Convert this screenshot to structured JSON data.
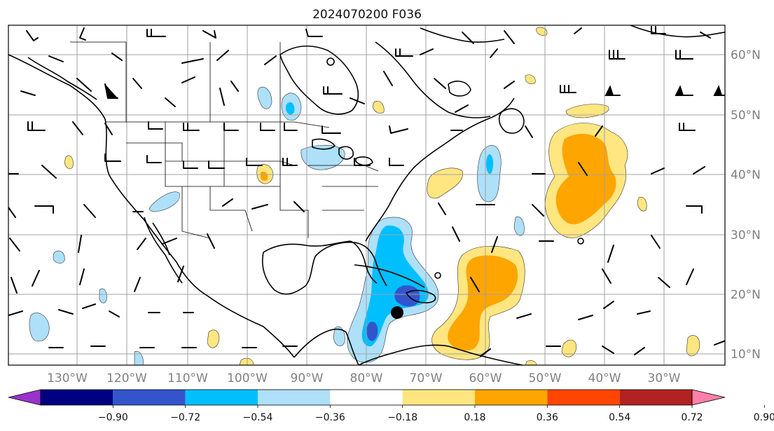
{
  "title": "2024070200 F036",
  "lon_labels": [
    "130°W",
    "120°W",
    "110°W",
    "100°W",
    "90°W",
    "80°W",
    "70°W",
    "60°W",
    "50°W",
    "40°W",
    "30°W"
  ],
  "lat_labels": [
    "60°N",
    "50°N",
    "40°N",
    "30°N",
    "20°N",
    "10°N"
  ],
  "colorbar": {
    "ticks": [
      "−0.90",
      "−0.72",
      "−0.54",
      "−0.36",
      "−0.18",
      "0.18",
      "0.36",
      "0.54",
      "0.72",
      "0.90"
    ],
    "colors": [
      "#9933cc",
      "#000080",
      "#3355cc",
      "#00bfff",
      "#aee0fa",
      "#ffffff",
      "#ffe680",
      "#ffa500",
      "#ff4500",
      "#b22222",
      "#ff80aa"
    ]
  },
  "colors": {
    "neg_light": "#aee0fa",
    "neg_mid": "#00bfff",
    "neg_dark": "#3355cc",
    "pos_light": "#ffe680",
    "pos_mid": "#ffa500",
    "pos_dark": "#ff4500",
    "grid": "#a0a0a0",
    "coast": "#000000"
  },
  "storm_marker": "black-dot"
}
